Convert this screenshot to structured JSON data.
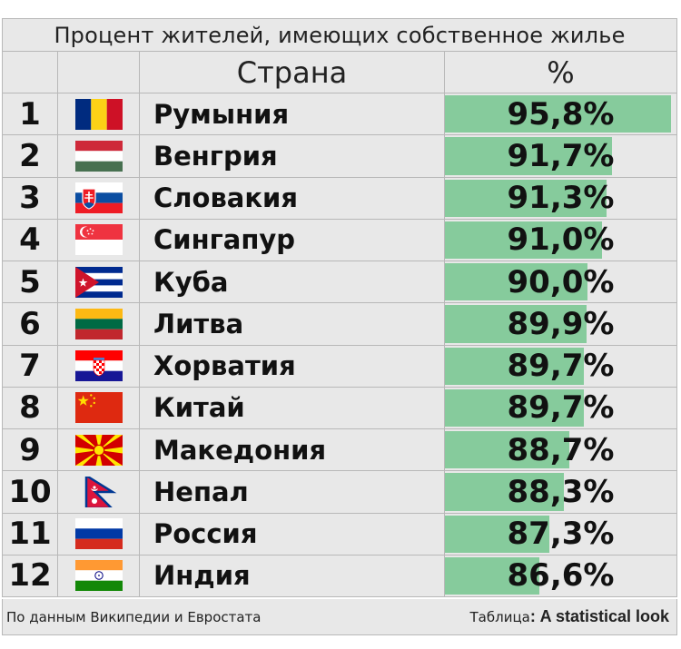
{
  "title": "Процент жителей, имеющих собственное жилье",
  "header": {
    "country": "Страна",
    "percent": "%"
  },
  "footer": {
    "source": "По данным Википедии и Евростата",
    "credit_prefix": "Таблица",
    "credit_sep": ":",
    "credit_name": "A statistical look"
  },
  "rows": [
    {
      "rank": "1",
      "country": "Румыния",
      "percent_label": "95,8%",
      "flag": "romania-flag"
    },
    {
      "rank": "2",
      "country": "Венгрия",
      "percent_label": "91,7%",
      "flag": "hungary-flag"
    },
    {
      "rank": "3",
      "country": "Словакия",
      "percent_label": "91,3%",
      "flag": "slovakia-flag"
    },
    {
      "rank": "4",
      "country": "Сингапур",
      "percent_label": "91,0%",
      "flag": "singapore-flag"
    },
    {
      "rank": "5",
      "country": "Куба",
      "percent_label": "90,0%",
      "flag": "cuba-flag"
    },
    {
      "rank": "6",
      "country": "Литва",
      "percent_label": "89,9%",
      "flag": "lithuania-flag"
    },
    {
      "rank": "7",
      "country": "Хорватия",
      "percent_label": "89,7%",
      "flag": "croatia-flag"
    },
    {
      "rank": "8",
      "country": "Китай",
      "percent_label": "89,7%",
      "flag": "china-flag"
    },
    {
      "rank": "9",
      "country": "Македония",
      "percent_label": "88,7%",
      "flag": "macedonia-flag"
    },
    {
      "rank": "10",
      "country": "Непал",
      "percent_label": "88,3%",
      "flag": "nepal-flag"
    },
    {
      "rank": "11",
      "country": "Россия",
      "percent_label": "87,3%",
      "flag": "russia-flag"
    },
    {
      "rank": "12",
      "country": "Индия",
      "percent_label": "86,6%",
      "flag": "india-flag"
    }
  ],
  "colors": {
    "bar": "#86cb9c",
    "header_bg": "#e8e8e8",
    "border": "#b8b8b8"
  },
  "chart_data": {
    "type": "table",
    "title": "Процент жителей, имеющих собственное жилье",
    "columns": [
      "Страна",
      "%"
    ],
    "categories": [
      "Румыния",
      "Венгрия",
      "Словакия",
      "Сингапур",
      "Куба",
      "Литва",
      "Хорватия",
      "Китай",
      "Македония",
      "Непал",
      "Россия",
      "Индия"
    ],
    "values": [
      95.8,
      91.7,
      91.3,
      91.0,
      90.0,
      89.9,
      89.7,
      89.7,
      88.7,
      88.3,
      87.3,
      86.6
    ]
  }
}
